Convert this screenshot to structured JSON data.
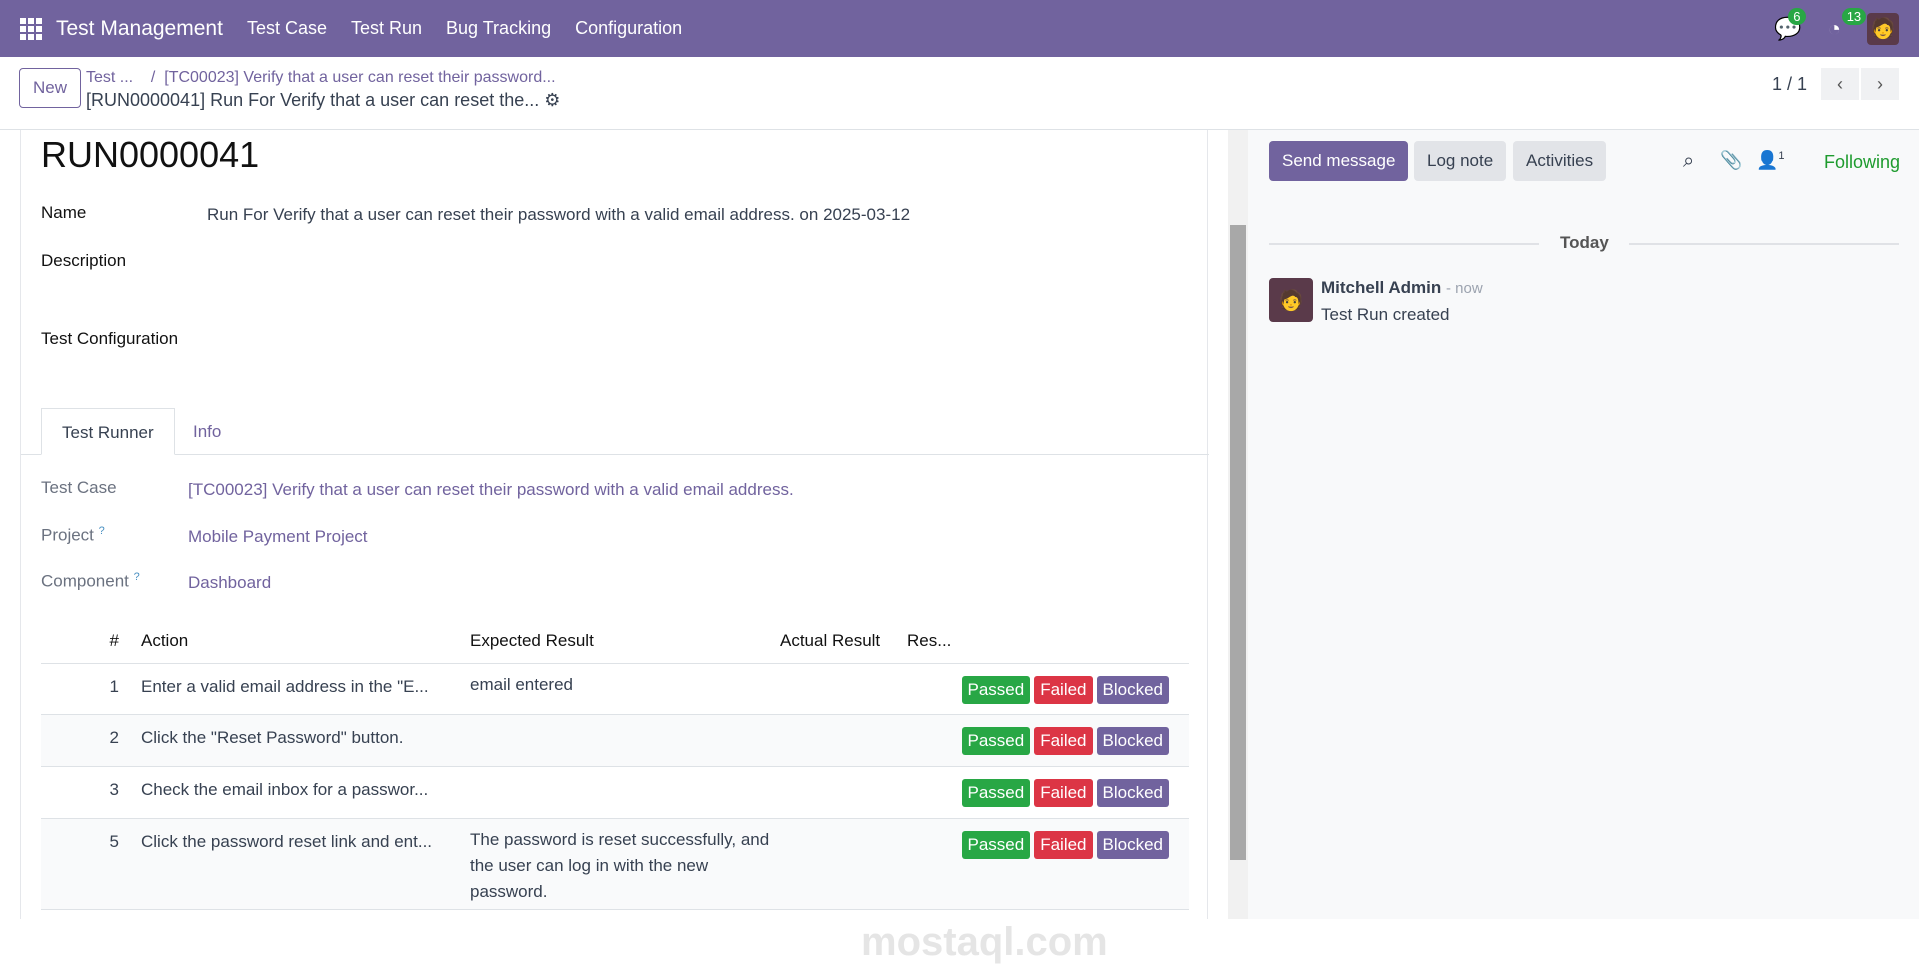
{
  "navbar": {
    "app": "Test Management",
    "menu": [
      "Test Case",
      "Test Run",
      "Bug Tracking",
      "Configuration"
    ],
    "messages_count": "6",
    "activities_count": "13"
  },
  "control": {
    "new_label": "New",
    "breadcrumb_parent": "Test ...",
    "breadcrumb_sep": "/",
    "breadcrumb_case": "[TC00023] Verify that a user can reset their password...",
    "current": "[RUN0000041] Run For Verify that a user can reset the...",
    "pager": "1 / 1"
  },
  "form": {
    "title": "RUN0000041",
    "name_label": "Name",
    "name_value": "Run For Verify that a user can reset their password with a valid email address. on 2025-03-12",
    "description_label": "Description",
    "config_label": "Test Configuration",
    "tabs": [
      "Test Runner",
      "Info"
    ],
    "test_case_label": "Test Case",
    "test_case_value": "[TC00023] Verify that a user can reset their password with a valid email address.",
    "project_label": "Project",
    "project_value": "Mobile Payment Project",
    "component_label": "Component",
    "component_value": "Dashboard",
    "help": "?"
  },
  "table": {
    "headers": [
      "#",
      "Action",
      "Expected Result",
      "Actual Result",
      "Res..."
    ],
    "rows": [
      {
        "n": "1",
        "action": "Enter a valid email address in the \"E...",
        "expected": "email entered",
        "actual": ""
      },
      {
        "n": "2",
        "action": "Click the \"Reset Password\" button.",
        "expected": "",
        "actual": ""
      },
      {
        "n": "3",
        "action": "Check the email inbox for a passwor...",
        "expected": "",
        "actual": ""
      },
      {
        "n": "5",
        "action": "Click the password reset link and ent...",
        "expected": "The password is reset successfully, and the user can log in with the new password.",
        "actual": ""
      }
    ],
    "buttons": [
      "Passed",
      "Failed",
      "Blocked"
    ]
  },
  "colors": {
    "brand": "#71639e",
    "passed": "#28a745",
    "failed": "#dc3545",
    "blocked": "#71639e",
    "following": "#1e9b2e"
  },
  "chatter": {
    "send": "Send message",
    "log": "Log note",
    "activities": "Activities",
    "followers": "1",
    "following": "Following",
    "today": "Today",
    "author": "Mitchell Admin",
    "time": "- now",
    "body": "Test Run created"
  },
  "watermark": "mostaql.com"
}
